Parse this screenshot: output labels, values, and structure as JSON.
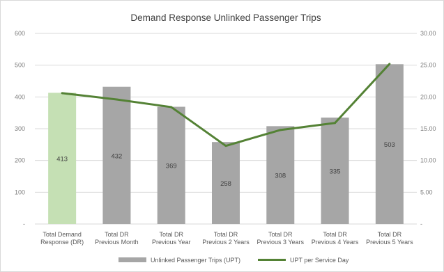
{
  "chart_data": {
    "type": "bar",
    "title": "Demand Response Unlinked Passenger Trips",
    "categories": [
      [
        "Total Demand",
        "Response (DR)"
      ],
      [
        "Total DR",
        "Previous Month"
      ],
      [
        "Total DR",
        "Previous Year"
      ],
      [
        "Total DR",
        "Previous 2 Years"
      ],
      [
        "Total DR",
        "Previous 3 Years"
      ],
      [
        "Total DR",
        "Previous 4 Years"
      ],
      [
        "Total DR",
        "Previous 5 Years"
      ]
    ],
    "series": [
      {
        "name": "Unlinked Passenger Trips (UPT)",
        "type": "bar",
        "axis": "left",
        "values": [
          413,
          432,
          369,
          258,
          308,
          335,
          503
        ],
        "data_labels": [
          "413",
          "432",
          "369",
          "258",
          "308",
          "335",
          "503"
        ],
        "colors": [
          "#c5e0b4",
          "#a6a6a6",
          "#a6a6a6",
          "#a6a6a6",
          "#a6a6a6",
          "#a6a6a6",
          "#a6a6a6"
        ]
      },
      {
        "name": "UPT per Service Day",
        "type": "line",
        "axis": "right",
        "values": [
          20.6,
          19.6,
          18.4,
          12.3,
          14.8,
          15.9,
          25.2
        ],
        "color": "#548235"
      }
    ],
    "y_left": {
      "min": 0,
      "max": 600,
      "ticks": [
        "-",
        "100",
        "200",
        "300",
        "400",
        "500",
        "600"
      ]
    },
    "y_right": {
      "min": 0,
      "max": 30,
      "ticks": [
        "-",
        "5.00",
        "10.00",
        "15.00",
        "20.00",
        "25.00",
        "30.00"
      ]
    },
    "grid": true,
    "legend_position": "bottom"
  }
}
